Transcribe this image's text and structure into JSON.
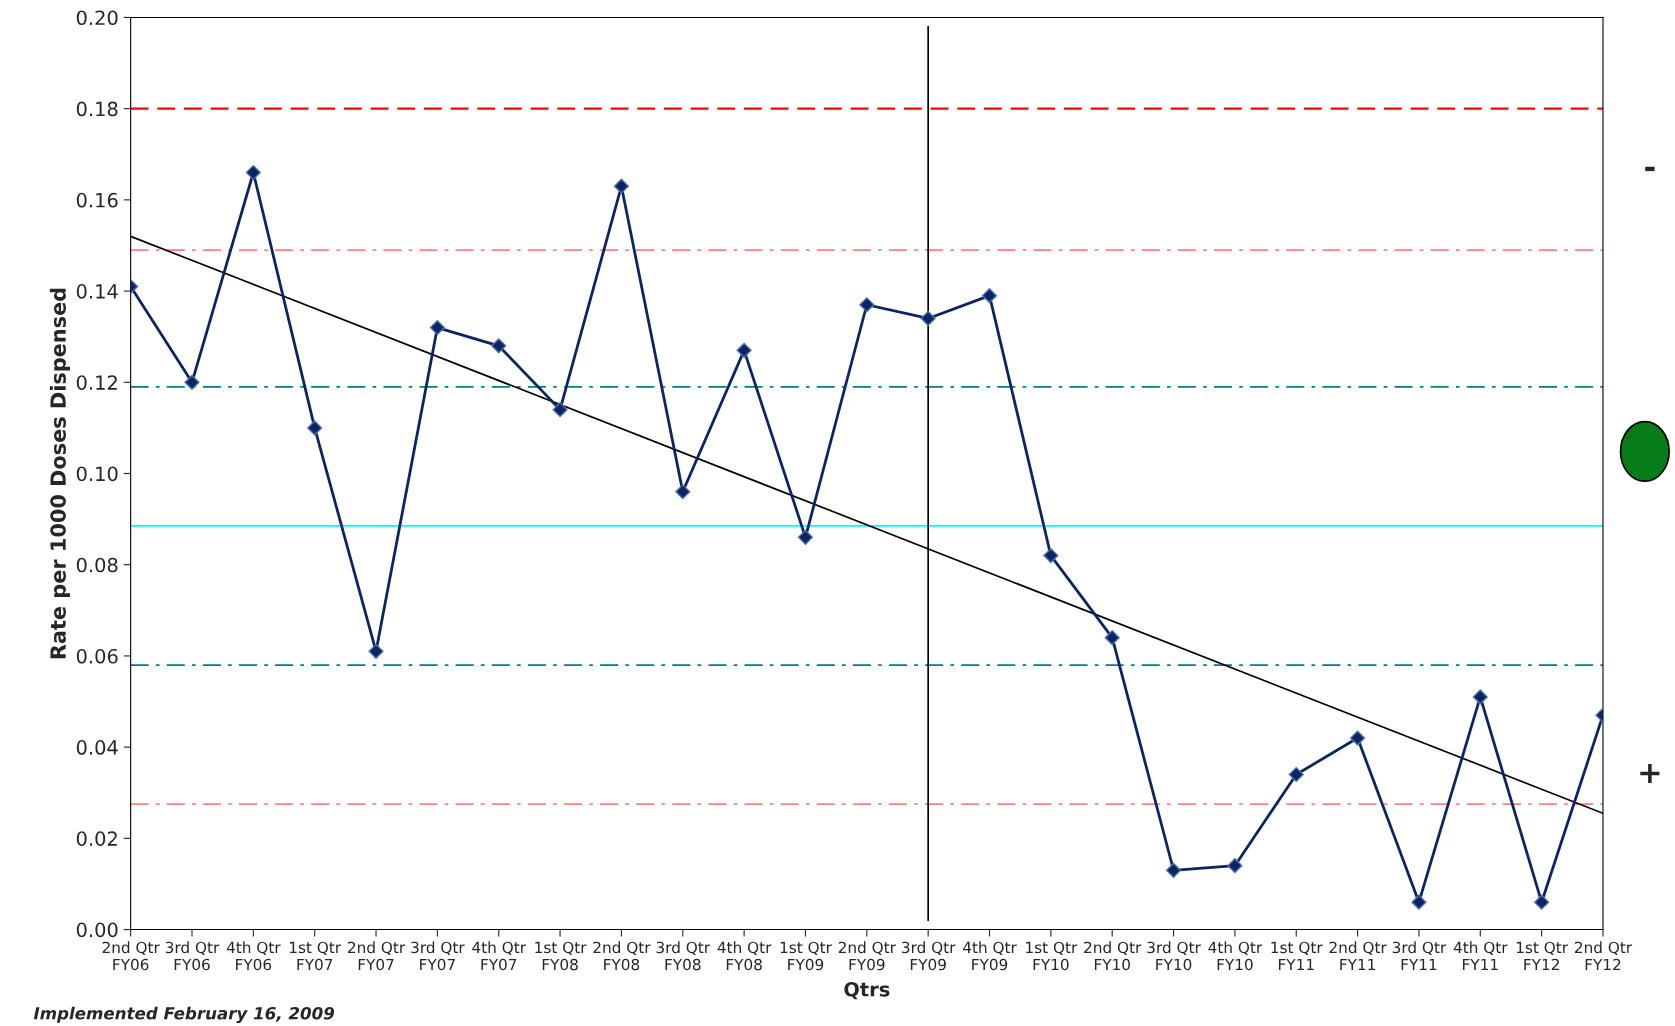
{
  "chart_data": {
    "type": "line",
    "xlabel": "Qtrs",
    "ylabel": "Rate per 1000 Doses Dispensed",
    "categories": [
      "2nd Qtr\nFY06",
      "3rd Qtr\nFY06",
      "4th Qtr\nFY06",
      "1st Qtr\nFY07",
      "2nd Qtr\nFY07",
      "3rd Qtr\nFY07",
      "4th Qtr\nFY07",
      "1st Qtr\nFY08",
      "2nd Qtr\nFY08",
      "3rd Qtr\nFY08",
      "4th Qtr\nFY08",
      "1st Qtr\nFY09",
      "2nd Qtr\nFY09",
      "3rd Qtr\nFY09",
      "4th Qtr\nFY09",
      "1st Qtr\nFY10",
      "2nd Qtr\nFY10",
      "3rd Qtr\nFY10",
      "4th Qtr\nFY10",
      "1st Qtr\nFY11",
      "2nd Qtr\nFY11",
      "3rd Qtr\nFY11",
      "4th Qtr\nFY11",
      "1st Qtr\nFY12",
      "2nd Qtr\nFY12"
    ],
    "series": [
      {
        "color": "#0b2563",
        "marker": "diamond",
        "values": [
          0.141,
          0.12,
          0.166,
          0.11,
          0.061,
          0.132,
          0.128,
          0.114,
          0.163,
          0.096,
          0.127,
          0.086,
          0.137,
          0.134,
          0.139,
          0.082,
          0.064,
          0.013,
          0.014,
          0.034,
          0.042,
          0.006,
          0.051,
          0.006,
          0.047
        ]
      },
      {
        "color": "#000000",
        "marker": "none",
        "x": [
          "2nd Qtr\nFY06",
          "2nd Qtr\nFY12"
        ],
        "values": [
          0.152,
          0.0255
        ]
      }
    ],
    "ylim": [
      0,
      0.2
    ],
    "yticks": [
      {
        "value": 0,
        "label": "0.00"
      },
      {
        "value": 0.02,
        "label": "0.02"
      },
      {
        "value": 0.04,
        "label": "0.04"
      },
      {
        "value": 0.06,
        "label": "0.06"
      },
      {
        "value": 0.08,
        "label": "0.08"
      },
      {
        "value": 0.1,
        "label": "0.10"
      },
      {
        "value": 0.12,
        "label": "0.12"
      },
      {
        "value": 0.14,
        "label": "0.14"
      },
      {
        "value": 0.16,
        "label": "0.16"
      },
      {
        "value": 0.18,
        "label": "0.18"
      },
      {
        "value": 0.2,
        "label": "0.20"
      }
    ],
    "ref_lines": [
      {
        "axis": "y",
        "value": 0.18,
        "color": "#ff0000",
        "line_style": "dashed"
      },
      {
        "axis": "y",
        "value": 0.149,
        "color": "#ff8080",
        "line_style": "dashdot"
      },
      {
        "axis": "y",
        "value": 0.119,
        "color": "#008080",
        "line_style": "dashdot"
      },
      {
        "axis": "y",
        "value": 0.0885,
        "color": "#00ffff",
        "line_style": "solid"
      },
      {
        "axis": "y",
        "value": 0.058,
        "color": "#008080",
        "line_style": "dashdot"
      },
      {
        "axis": "y",
        "value": 0.0275,
        "color": "#ff8080",
        "line_style": "dashdot"
      },
      {
        "axis": "x",
        "value": "3rd Qtr\nFY09",
        "color": "#000000",
        "line_style": "solid"
      }
    ],
    "annotations": [
      "-",
      "+",
      "Implemented February 16, 2009"
    ],
    "grid": false,
    "legend": false
  }
}
